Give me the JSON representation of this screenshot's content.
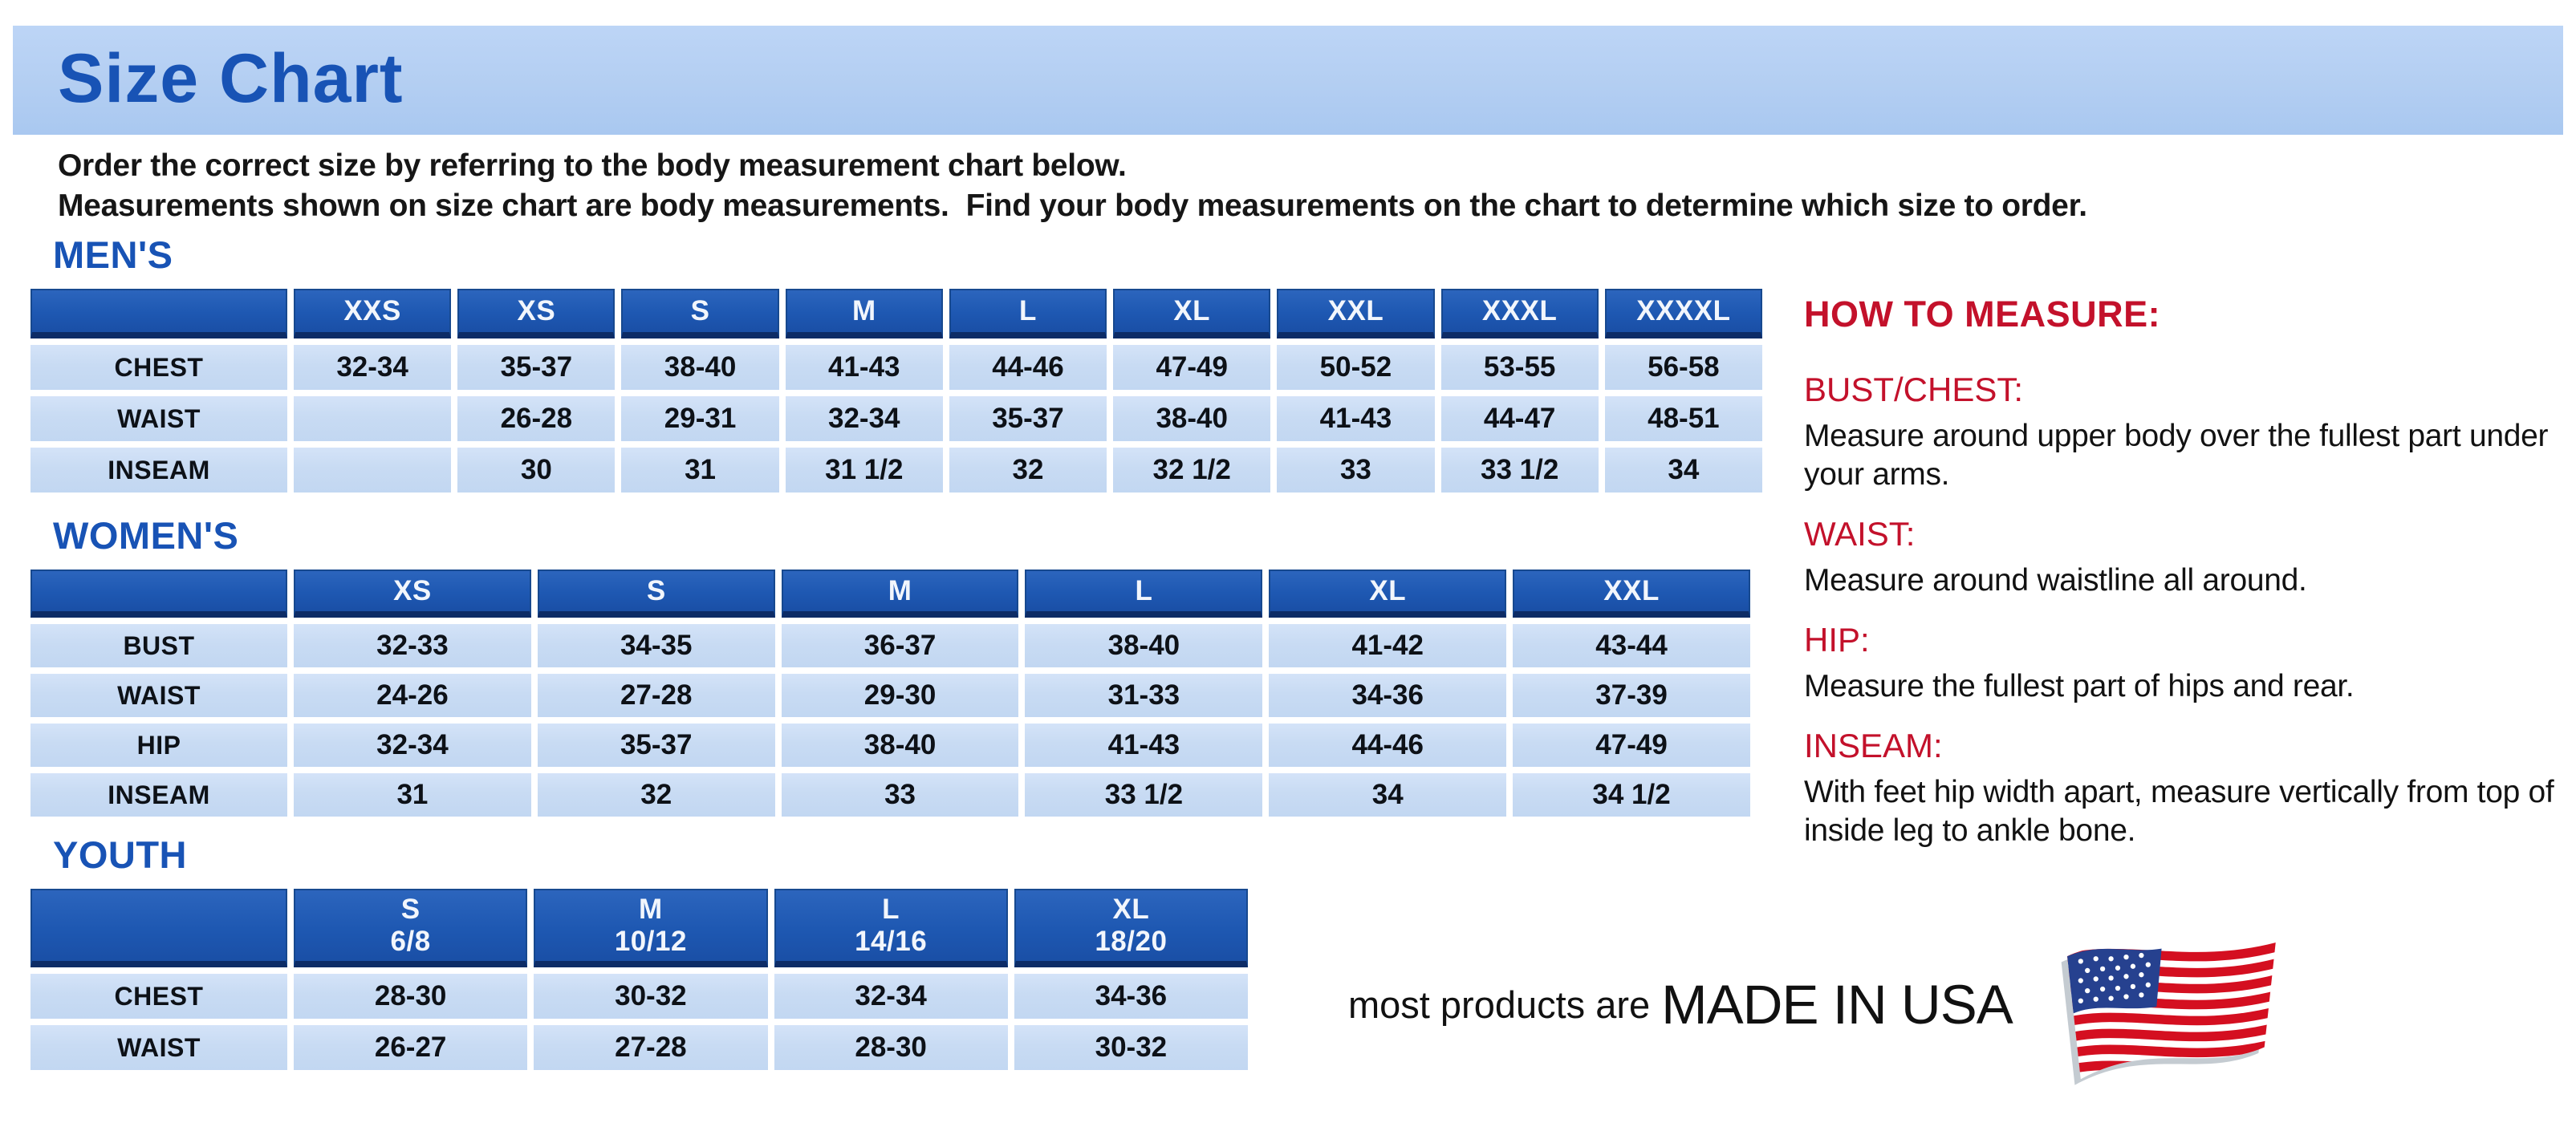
{
  "page": {
    "title": "Size Chart",
    "intro_line1": "Order the correct size by referring to the body measurement chart below.",
    "intro_line2": "Measurements shown on size chart are body measurements.  Find your body measurements on the chart to determine which size to order."
  },
  "colors": {
    "banner_bg": "#b3cef2",
    "title_blue": "#1853b5",
    "table_header_blue": "#1e58b2",
    "table_header_border": "#0d2c66",
    "table_cell_blue": "#c8dbf3",
    "heading_red": "#c3112b",
    "flag_red": "#d40f20",
    "flag_blue": "#26418f"
  },
  "tables": {
    "mens": {
      "section_label": "MEN'S",
      "headers": [
        "",
        "XXS",
        "XS",
        "S",
        "M",
        "L",
        "XL",
        "XXL",
        "XXXL",
        "XXXXL"
      ],
      "rows": [
        {
          "label": "CHEST",
          "cells": [
            "32-34",
            "35-37",
            "38-40",
            "41-43",
            "44-46",
            "47-49",
            "50-52",
            "53-55",
            "56-58"
          ]
        },
        {
          "label": "WAIST",
          "cells": [
            "",
            "26-28",
            "29-31",
            "32-34",
            "35-37",
            "38-40",
            "41-43",
            "44-47",
            "48-51"
          ]
        },
        {
          "label": "INSEAM",
          "cells": [
            "",
            "30",
            "31",
            "31 1/2",
            "32",
            "32 1/2",
            "33",
            "33 1/2",
            "34"
          ]
        }
      ]
    },
    "womens": {
      "section_label": "WOMEN'S",
      "headers": [
        "",
        "XS",
        "S",
        "M",
        "L",
        "XL",
        "XXL"
      ],
      "rows": [
        {
          "label": "BUST",
          "cells": [
            "32-33",
            "34-35",
            "36-37",
            "38-40",
            "41-42",
            "43-44"
          ]
        },
        {
          "label": "WAIST",
          "cells": [
            "24-26",
            "27-28",
            "29-30",
            "31-33",
            "34-36",
            "37-39"
          ]
        },
        {
          "label": "HIP",
          "cells": [
            "32-34",
            "35-37",
            "38-40",
            "41-43",
            "44-46",
            "47-49"
          ]
        },
        {
          "label": "INSEAM",
          "cells": [
            "31",
            "32",
            "33",
            "33 1/2",
            "34",
            "34 1/2"
          ]
        }
      ]
    },
    "youth": {
      "section_label": "YOUTH",
      "headers": [
        "",
        "S\n6/8",
        "M\n10/12",
        "L\n14/16",
        "XL\n18/20"
      ],
      "rows": [
        {
          "label": "CHEST",
          "cells": [
            "28-30",
            "30-32",
            "32-34",
            "34-36"
          ]
        },
        {
          "label": "WAIST",
          "cells": [
            "26-27",
            "27-28",
            "28-30",
            "30-32"
          ]
        }
      ]
    }
  },
  "how_to_measure": {
    "title": "HOW TO MEASURE:",
    "items": [
      {
        "label": "BUST/CHEST:",
        "text": "Measure around upper body over the fullest part under your arms."
      },
      {
        "label": "WAIST:",
        "text": "Measure around waistline all around."
      },
      {
        "label": "HIP:",
        "text": "Measure the fullest part of hips and rear."
      },
      {
        "label": "INSEAM:",
        "text": "With feet hip width apart, measure vertically from top of inside leg to ankle bone."
      }
    ]
  },
  "footer": {
    "prefix": "most products are",
    "emphasis": "MADE IN USA",
    "flag_icon": "us-flag-icon"
  }
}
